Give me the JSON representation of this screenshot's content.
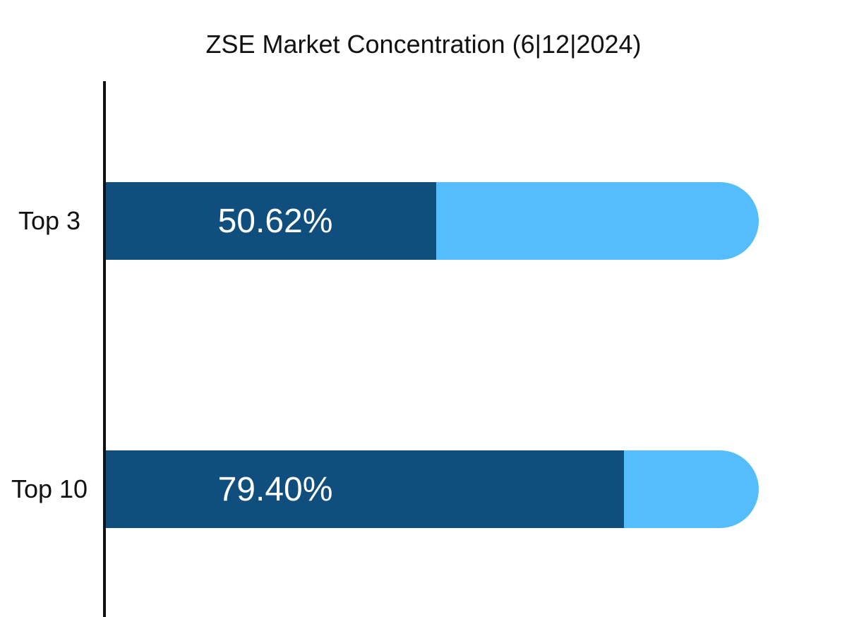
{
  "chart_data": {
    "type": "bar",
    "orientation": "horizontal",
    "title": "ZSE Market Concentration (6|12|2024)",
    "categories": [
      "Top 3",
      "Top 10"
    ],
    "values": [
      50.62,
      79.4
    ],
    "value_labels": [
      "50.62%",
      "79.40%"
    ],
    "xlim": [
      0,
      100
    ],
    "grid": false,
    "legend": "none",
    "colors": {
      "bar_fill": "#0f4e7d",
      "bar_track": "#56bdfd",
      "axis_line": "#111111",
      "value_text": "#ffffff",
      "label_text": "#111111",
      "background": "#ffffff"
    }
  }
}
